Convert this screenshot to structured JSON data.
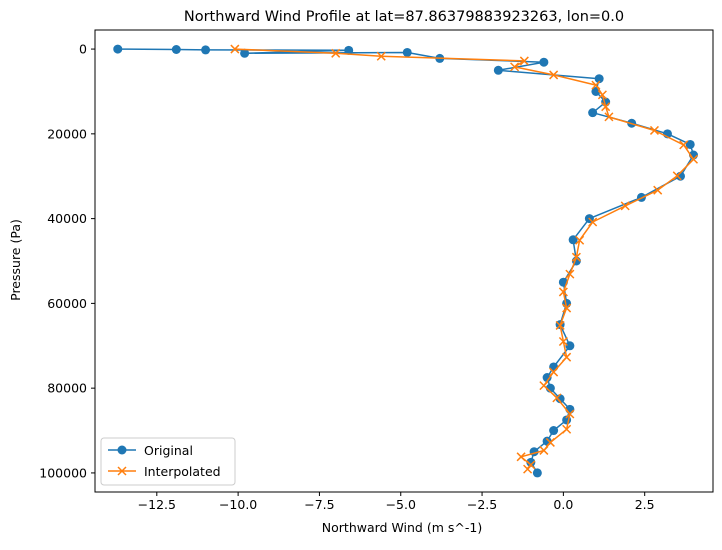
{
  "chart_data": {
    "type": "line",
    "title": "Northward Wind Profile at lat=87.86379883923263, lon=0.0",
    "xlabel": "Northward Wind (m s^-1)",
    "ylabel": "Pressure (Pa)",
    "xlim": [
      -14.4,
      4.6
    ],
    "ylim": [
      104500,
      -4500
    ],
    "y_inverted": true,
    "grid": false,
    "legend_position": "lower-left",
    "x_ticks": [
      -12.5,
      -10.0,
      -7.5,
      -5.0,
      -2.5,
      0.0,
      2.5
    ],
    "x_tick_labels": [
      "−12.5",
      "−10.0",
      "−7.5",
      "−5.0",
      "−2.5",
      "0.0",
      "2.5"
    ],
    "y_ticks": [
      0,
      20000,
      40000,
      60000,
      80000,
      100000
    ],
    "y_tick_labels": [
      "0",
      "20000",
      "40000",
      "60000",
      "80000",
      "100000"
    ],
    "series": [
      {
        "name": "Original",
        "color": "#1f77b4",
        "marker": "circle",
        "points": [
          [
            -13.7,
            0
          ],
          [
            -11.9,
            100
          ],
          [
            -11.0,
            200
          ],
          [
            -6.6,
            300
          ],
          [
            -9.8,
            1000
          ],
          [
            -4.8,
            800
          ],
          [
            -3.8,
            2200
          ],
          [
            -0.6,
            3100
          ],
          [
            -2.0,
            5000
          ],
          [
            1.1,
            7000
          ],
          [
            1.0,
            10000
          ],
          [
            1.3,
            12500
          ],
          [
            0.9,
            15000
          ],
          [
            2.1,
            17500
          ],
          [
            3.2,
            20000
          ],
          [
            3.9,
            22500
          ],
          [
            4.0,
            25000
          ],
          [
            3.6,
            30000
          ],
          [
            2.4,
            35000
          ],
          [
            0.8,
            40000
          ],
          [
            0.3,
            45000
          ],
          [
            0.4,
            50000
          ],
          [
            0.0,
            55000
          ],
          [
            0.1,
            60000
          ],
          [
            -0.1,
            65000
          ],
          [
            0.2,
            70000
          ],
          [
            -0.3,
            75000
          ],
          [
            -0.5,
            77500
          ],
          [
            -0.4,
            80000
          ],
          [
            -0.1,
            82500
          ],
          [
            0.2,
            85000
          ],
          [
            0.1,
            87500
          ],
          [
            -0.3,
            90000
          ],
          [
            -0.5,
            92500
          ],
          [
            -0.9,
            95000
          ],
          [
            -1.0,
            97500
          ],
          [
            -0.8,
            100000
          ]
        ]
      },
      {
        "name": "Interpolated",
        "color": "#ff7f0e",
        "marker": "x",
        "points": [
          [
            -10.1,
            0
          ],
          [
            -7.0,
            1000
          ],
          [
            -5.6,
            1700
          ],
          [
            -1.2,
            2800
          ],
          [
            -1.5,
            4200
          ],
          [
            -0.3,
            6100
          ],
          [
            1.0,
            8500
          ],
          [
            1.2,
            10800
          ],
          [
            1.3,
            13600
          ],
          [
            1.4,
            16000
          ],
          [
            2.8,
            19200
          ],
          [
            3.7,
            22600
          ],
          [
            4.0,
            26000
          ],
          [
            3.5,
            29900
          ],
          [
            2.9,
            33300
          ],
          [
            1.9,
            37000
          ],
          [
            0.9,
            40800
          ],
          [
            0.5,
            45100
          ],
          [
            0.4,
            49100
          ],
          [
            0.2,
            53100
          ],
          [
            0.0,
            57300
          ],
          [
            0.1,
            61100
          ],
          [
            -0.1,
            65200
          ],
          [
            0.0,
            69000
          ],
          [
            0.1,
            72700
          ],
          [
            -0.3,
            76200
          ],
          [
            -0.6,
            79400
          ],
          [
            -0.2,
            82300
          ],
          [
            0.2,
            86100
          ],
          [
            0.1,
            89700
          ],
          [
            -0.4,
            92800
          ],
          [
            -0.6,
            94700
          ],
          [
            -1.3,
            96200
          ],
          [
            -1.0,
            98100
          ],
          [
            -1.1,
            99100
          ]
        ]
      }
    ]
  }
}
